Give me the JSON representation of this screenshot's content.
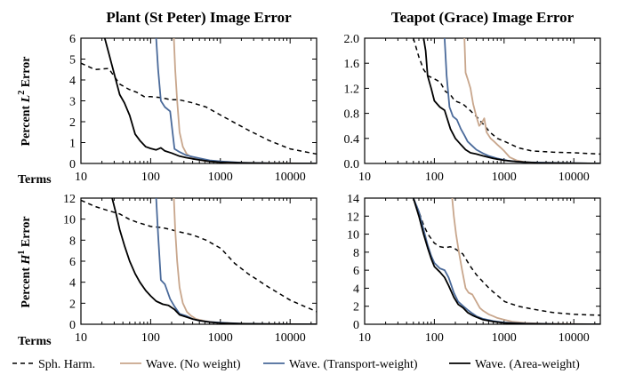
{
  "legend": [
    {
      "label": "Sph. Harm.",
      "color": "#000000",
      "dash": true
    },
    {
      "label": "Wave. (No weight)",
      "color": "#c8a68c",
      "dash": false
    },
    {
      "label": "Wave. (Transport-weight)",
      "color": "#4a6a9a",
      "dash": false
    },
    {
      "label": "Wave. (Area-weight)",
      "color": "#000000",
      "dash": false
    }
  ],
  "row_labels": {
    "top": {
      "pre": "Percent ",
      "sym": "L",
      "sup": "2",
      "post": " Error"
    },
    "bottom": {
      "pre": "Percent ",
      "sym": "H",
      "sup": "1",
      "post": " Error"
    }
  },
  "terms_label": "Terms",
  "chart_data": [
    {
      "type": "line",
      "title": "Plant (St Peter) Image Error",
      "xscale": "log",
      "xlim": [
        10,
        24000
      ],
      "xticks": [
        "10",
        "100",
        "1000",
        "10000"
      ],
      "ylim": [
        0,
        6
      ],
      "yticks": [
        "0",
        "1",
        "2",
        "3",
        "4",
        "5",
        "6"
      ],
      "series": [
        {
          "name": "Sph. Harm.",
          "x": [
            10,
            16,
            25,
            36,
            49,
            64,
            81,
            100,
            144,
            196,
            256,
            400,
            625,
            1024,
            2500,
            5000,
            10000,
            24000
          ],
          "y": [
            4.8,
            4.5,
            4.55,
            3.8,
            3.55,
            3.4,
            3.2,
            3.2,
            3.15,
            3.05,
            3.05,
            2.9,
            2.7,
            2.3,
            1.6,
            1.1,
            0.7,
            0.45
          ]
        },
        {
          "name": "Wave. (No weight)",
          "x": [
            215,
            225,
            240,
            260,
            290,
            330,
            380,
            450,
            600,
            900,
            1500,
            3000,
            8000,
            24000
          ],
          "y": [
            6,
            4.5,
            3.0,
            1.5,
            0.8,
            0.45,
            0.3,
            0.2,
            0.12,
            0.07,
            0.04,
            0.02,
            0.01,
            0.0
          ]
        },
        {
          "name": "Wave. (Transport-weight)",
          "x": [
            120,
            128,
            140,
            160,
            190,
            220,
            260,
            320,
            400,
            500,
            700,
            1000,
            2000,
            5000,
            24000
          ],
          "y": [
            6,
            4.5,
            3.0,
            2.7,
            2.5,
            0.7,
            0.55,
            0.4,
            0.32,
            0.25,
            0.15,
            0.1,
            0.04,
            0.01,
            0.0
          ]
        },
        {
          "name": "Wave. (Area-weight)",
          "x": [
            22,
            25,
            30,
            36,
            42,
            50,
            60,
            70,
            85,
            100,
            120,
            140,
            160,
            200,
            260,
            320,
            400,
            500,
            700,
            1000,
            2000,
            5000,
            24000
          ],
          "y": [
            6,
            5.3,
            4.3,
            3.3,
            2.9,
            2.3,
            1.4,
            1.1,
            0.8,
            0.72,
            0.65,
            0.75,
            0.6,
            0.5,
            0.35,
            0.28,
            0.22,
            0.17,
            0.1,
            0.06,
            0.03,
            0.01,
            0.0
          ]
        }
      ]
    },
    {
      "type": "line",
      "title": "Teapot (Grace) Image Error",
      "xscale": "log",
      "xlim": [
        10,
        24000
      ],
      "xticks": [
        "10",
        "100",
        "1000",
        "10000"
      ],
      "ylim": [
        0,
        2.0
      ],
      "yticks": [
        "0.0",
        "0.4",
        "0.8",
        "1.2",
        "1.6",
        "2.0"
      ],
      "series": [
        {
          "name": "Sph. Harm.",
          "x": [
            50,
            60,
            70,
            81,
            100,
            121,
            144,
            169,
            196,
            256,
            324,
            400,
            529,
            625,
            800,
            1024,
            1600,
            2500,
            5000,
            10000,
            24000
          ],
          "y": [
            2.0,
            1.7,
            1.5,
            1.4,
            1.35,
            1.3,
            1.15,
            1.1,
            1.0,
            0.95,
            0.85,
            0.75,
            0.6,
            0.5,
            0.4,
            0.35,
            0.25,
            0.2,
            0.18,
            0.17,
            0.15
          ]
        },
        {
          "name": "Wave. (No weight)",
          "x": [
            270,
            280,
            300,
            330,
            360,
            400,
            440,
            480,
            520,
            560,
            640,
            720,
            800,
            900,
            1000,
            1200,
            1500,
            2000,
            3000,
            24000
          ],
          "y": [
            2.0,
            1.45,
            1.35,
            1.2,
            0.95,
            0.75,
            0.6,
            0.65,
            0.72,
            0.5,
            0.4,
            0.35,
            0.3,
            0.25,
            0.2,
            0.1,
            0.05,
            0.02,
            0.01,
            0.0
          ]
        },
        {
          "name": "Wave. (Transport-weight)",
          "x": [
            140,
            150,
            165,
            185,
            210,
            240,
            270,
            300,
            350,
            400,
            500,
            600,
            800,
            1200,
            2000,
            5000,
            24000
          ],
          "y": [
            2.0,
            1.4,
            0.9,
            0.75,
            0.7,
            0.55,
            0.45,
            0.35,
            0.28,
            0.22,
            0.16,
            0.12,
            0.08,
            0.04,
            0.02,
            0.01,
            0.0
          ]
        },
        {
          "name": "Wave. (Area-weight)",
          "x": [
            70,
            75,
            80,
            90,
            100,
            120,
            140,
            170,
            200,
            240,
            280,
            330,
            400,
            500,
            700,
            1000,
            1500,
            3000,
            24000
          ],
          "y": [
            2.0,
            1.8,
            1.4,
            1.2,
            1.0,
            0.9,
            0.85,
            0.55,
            0.4,
            0.3,
            0.22,
            0.17,
            0.15,
            0.12,
            0.08,
            0.05,
            0.03,
            0.01,
            0.0
          ]
        }
      ]
    },
    {
      "type": "line",
      "title": "",
      "xscale": "log",
      "xlim": [
        10,
        24000
      ],
      "xticks": [
        "10",
        "100",
        "1000",
        "10000"
      ],
      "ylim": [
        0,
        12
      ],
      "yticks": [
        "0",
        "2",
        "4",
        "6",
        "8",
        "10",
        "12"
      ],
      "series": [
        {
          "name": "Sph. Harm.",
          "x": [
            10,
            16,
            25,
            36,
            49,
            64,
            81,
            100,
            144,
            196,
            256,
            400,
            625,
            1024,
            1600,
            2500,
            5000,
            10000,
            24000
          ],
          "y": [
            11.8,
            11.2,
            10.8,
            10.5,
            10.0,
            9.7,
            9.5,
            9.3,
            9.2,
            9.0,
            8.8,
            8.5,
            8.0,
            7.2,
            5.8,
            4.8,
            3.5,
            2.3,
            1.2
          ]
        },
        {
          "name": "Wave. (No weight)",
          "x": [
            215,
            225,
            240,
            260,
            290,
            330,
            380,
            450,
            600,
            900,
            1500,
            3000,
            8000,
            24000
          ],
          "y": [
            12,
            9.0,
            6.0,
            3.5,
            2.0,
            1.2,
            0.8,
            0.5,
            0.3,
            0.15,
            0.08,
            0.04,
            0.01,
            0.0
          ]
        },
        {
          "name": "Wave. (Transport-weight)",
          "x": [
            120,
            128,
            140,
            160,
            190,
            220,
            260,
            320,
            400,
            500,
            700,
            1000,
            2000,
            5000,
            24000
          ],
          "y": [
            12,
            8.5,
            4.2,
            3.8,
            2.4,
            1.7,
            1.0,
            0.8,
            0.5,
            0.35,
            0.22,
            0.15,
            0.06,
            0.02,
            0.0
          ]
        },
        {
          "name": "Wave. (Area-weight)",
          "x": [
            28,
            32,
            36,
            42,
            50,
            60,
            70,
            85,
            100,
            120,
            150,
            180,
            220,
            260,
            320,
            400,
            500,
            700,
            1000,
            2000,
            5000,
            24000
          ],
          "y": [
            12,
            10.5,
            9.0,
            7.5,
            6.0,
            4.8,
            4.0,
            3.2,
            2.7,
            2.2,
            1.9,
            1.8,
            1.4,
            0.9,
            0.7,
            0.5,
            0.35,
            0.2,
            0.12,
            0.05,
            0.02,
            0.0
          ]
        }
      ]
    },
    {
      "type": "line",
      "title": "",
      "xscale": "log",
      "xlim": [
        10,
        24000
      ],
      "xticks": [
        "10",
        "100",
        "1000",
        "10000"
      ],
      "ylim": [
        0,
        14
      ],
      "yticks": [
        "0",
        "2",
        "4",
        "6",
        "8",
        "10",
        "12",
        "14"
      ],
      "series": [
        {
          "name": "Sph. Harm.",
          "x": [
            50,
            60,
            70,
            81,
            100,
            121,
            144,
            169,
            196,
            256,
            324,
            400,
            529,
            625,
            800,
            1024,
            1600,
            2500,
            5000,
            10000,
            24000
          ],
          "y": [
            14,
            12.5,
            11.0,
            10.0,
            9.0,
            8.6,
            8.5,
            8.6,
            8.4,
            7.8,
            6.5,
            5.5,
            4.5,
            3.9,
            3.2,
            2.5,
            2.0,
            1.7,
            1.3,
            1.1,
            1.0
          ]
        },
        {
          "name": "Wave. (No weight)",
          "x": [
            180,
            190,
            205,
            225,
            250,
            280,
            310,
            350,
            400,
            450,
            500,
            600,
            700,
            800,
            1000,
            1300,
            2000,
            4000,
            24000
          ],
          "y": [
            14,
            12.0,
            10.0,
            8.0,
            6.0,
            4.0,
            3.5,
            3.3,
            2.5,
            1.8,
            1.5,
            1.1,
            0.9,
            0.7,
            0.5,
            0.3,
            0.15,
            0.05,
            0.0
          ]
        },
        {
          "name": "Wave. (Transport-weight)",
          "x": [
            50,
            60,
            70,
            80,
            90,
            100,
            120,
            140,
            160,
            190,
            220,
            260,
            300,
            350,
            400,
            500,
            700,
            1000,
            2000,
            5000,
            24000
          ],
          "y": [
            14,
            12.5,
            10.5,
            8.8,
            7.6,
            6.8,
            6.2,
            6.0,
            5.2,
            3.5,
            2.5,
            2.0,
            1.6,
            1.2,
            0.9,
            0.6,
            0.35,
            0.2,
            0.08,
            0.02,
            0.0
          ]
        },
        {
          "name": "Wave. (Area-weight)",
          "x": [
            50,
            60,
            70,
            80,
            90,
            100,
            120,
            140,
            160,
            190,
            220,
            260,
            300,
            350,
            400,
            500,
            700,
            1000,
            2000,
            5000,
            24000
          ],
          "y": [
            14,
            12.0,
            10.0,
            8.5,
            7.3,
            6.4,
            5.8,
            5.2,
            4.3,
            3.0,
            2.2,
            1.8,
            1.3,
            1.0,
            0.8,
            0.5,
            0.3,
            0.15,
            0.06,
            0.02,
            0.0
          ]
        }
      ]
    }
  ]
}
